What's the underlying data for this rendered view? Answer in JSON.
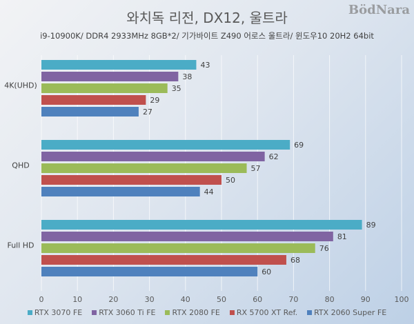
{
  "chart_data": {
    "type": "bar",
    "orientation": "horizontal",
    "title": "와치독 리전, DX12, 울트라",
    "subtitle": "i9-10900K/ DDR4 2933MHz 8GB*2/ 기가바이트 Z490 어로스 울트라/ 윈도우10 20H2 64bit",
    "categories": [
      "4K(UHD)",
      "QHD",
      "Full HD"
    ],
    "series": [
      {
        "name": "RTX 3070 FE",
        "color": "#4bacc6",
        "values": [
          43,
          69,
          89
        ]
      },
      {
        "name": "RTX 3060 Ti FE",
        "color": "#8064a2",
        "values": [
          38,
          62,
          81
        ]
      },
      {
        "name": "RTX 2080 FE",
        "color": "#9bbb59",
        "values": [
          35,
          57,
          76
        ]
      },
      {
        "name": "RX 5700 XT Ref.",
        "color": "#c0504d",
        "values": [
          29,
          50,
          68
        ]
      },
      {
        "name": "RTX 2060 Super FE",
        "color": "#4f81bd",
        "values": [
          27,
          44,
          60
        ]
      }
    ],
    "xlim": [
      0,
      100
    ],
    "xticks": [
      "0",
      "10",
      "20",
      "30",
      "40",
      "50",
      "60",
      "70",
      "80",
      "90",
      "100"
    ],
    "grid": true,
    "legend": "bottom",
    "data_labels": true
  },
  "watermark": "BodNara"
}
